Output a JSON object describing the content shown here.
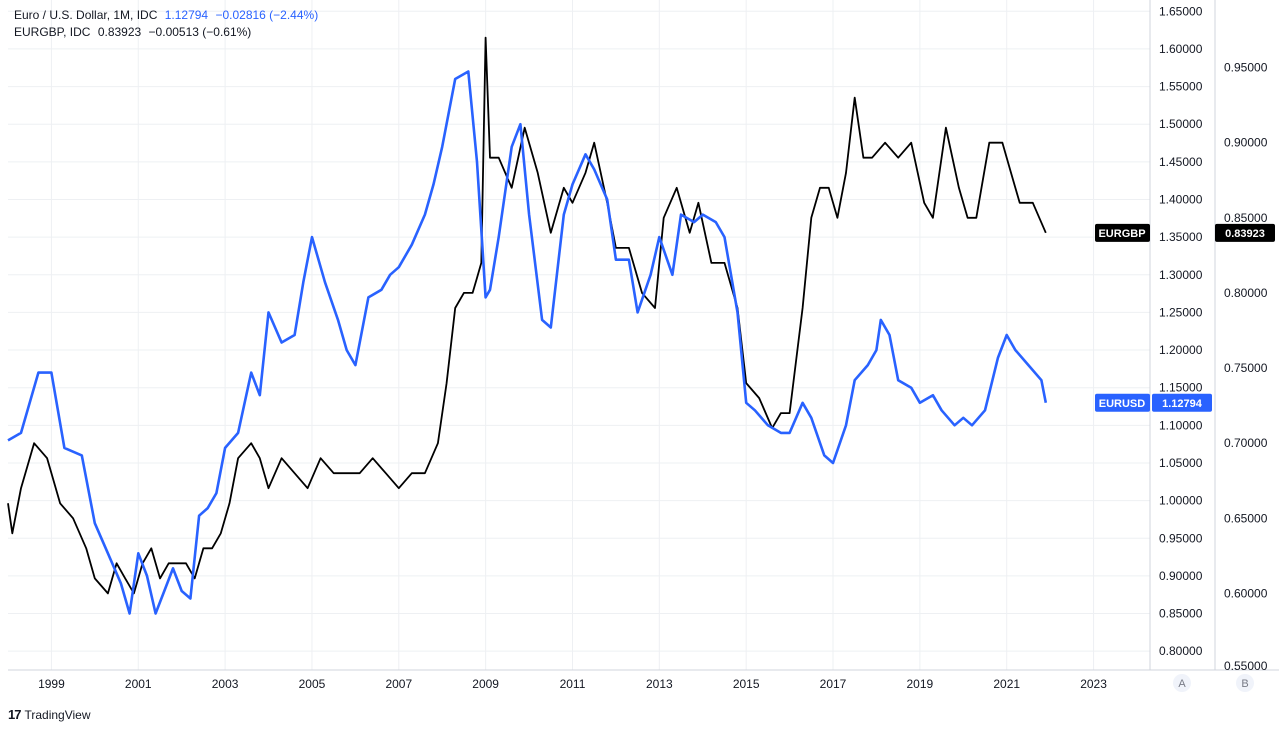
{
  "legend": {
    "eurusd": {
      "name": "Euro / U.S. Dollar, 1M, IDC",
      "value": "1.12794",
      "change": "−0.02816 (−2.44%)"
    },
    "eurgbp": {
      "name": "EURGBP, IDC",
      "value": "0.83923",
      "change": "−0.00513 (−0.61%)"
    }
  },
  "footer": {
    "brand": "TradingView",
    "logo": "17"
  },
  "scale_buttons": [
    "A",
    "B"
  ],
  "colors": {
    "eurusd": "#2962ff",
    "eurgbp": "#000000",
    "grid": "#eef0f3"
  },
  "chart_data": {
    "type": "line",
    "x_ticks": [
      "1999",
      "2001",
      "2003",
      "2005",
      "2007",
      "2009",
      "2011",
      "2013",
      "2015",
      "2017",
      "2019",
      "2021",
      "2023"
    ],
    "xlim": [
      1998.0,
      2024.3
    ],
    "axis_a": {
      "label": "A",
      "ylim": [
        0.775,
        1.665
      ],
      "ticks": [
        "0.80000",
        "0.85000",
        "0.90000",
        "0.95000",
        "1.00000",
        "1.05000",
        "1.10000",
        "1.15000",
        "1.20000",
        "1.25000",
        "1.30000",
        "1.35000",
        "1.40000",
        "1.45000",
        "1.50000",
        "1.55000",
        "1.60000",
        "1.65000"
      ]
    },
    "axis_b": {
      "label": "B",
      "ylim": [
        0.549,
        0.995
      ],
      "ticks": [
        "0.55000",
        "0.60000",
        "0.65000",
        "0.70000",
        "0.75000",
        "0.80000",
        "0.85000",
        "0.90000",
        "0.95000"
      ]
    },
    "series": [
      {
        "name": "EURUSD",
        "axis": "A",
        "color": "#2962ff",
        "last_value": "1.12794",
        "x": [
          1998.0,
          1998.3,
          1998.7,
          1999.0,
          1999.3,
          1999.7,
          2000.0,
          2000.3,
          2000.6,
          2000.8,
          2001.0,
          2001.2,
          2001.4,
          2001.6,
          2001.8,
          2002.0,
          2002.2,
          2002.4,
          2002.6,
          2002.8,
          2003.0,
          2003.3,
          2003.6,
          2003.8,
          2004.0,
          2004.3,
          2004.6,
          2004.8,
          2005.0,
          2005.3,
          2005.6,
          2005.8,
          2006.0,
          2006.3,
          2006.6,
          2006.8,
          2007.0,
          2007.3,
          2007.6,
          2007.8,
          2008.0,
          2008.3,
          2008.6,
          2008.8,
          2009.0,
          2009.1,
          2009.3,
          2009.6,
          2009.8,
          2010.0,
          2010.3,
          2010.5,
          2010.8,
          2011.0,
          2011.3,
          2011.5,
          2011.8,
          2012.0,
          2012.3,
          2012.5,
          2012.8,
          2013.0,
          2013.3,
          2013.5,
          2013.8,
          2014.0,
          2014.3,
          2014.5,
          2014.8,
          2015.0,
          2015.2,
          2015.5,
          2015.8,
          2016.0,
          2016.3,
          2016.5,
          2016.8,
          2017.0,
          2017.3,
          2017.5,
          2017.8,
          2018.0,
          2018.1,
          2018.3,
          2018.5,
          2018.8,
          2019.0,
          2019.3,
          2019.5,
          2019.8,
          2020.0,
          2020.2,
          2020.5,
          2020.8,
          2021.0,
          2021.2,
          2021.5,
          2021.8,
          2021.9
        ],
        "y": [
          1.08,
          1.09,
          1.17,
          1.17,
          1.07,
          1.06,
          0.97,
          0.93,
          0.89,
          0.85,
          0.93,
          0.9,
          0.85,
          0.88,
          0.91,
          0.88,
          0.87,
          0.98,
          0.99,
          1.01,
          1.07,
          1.09,
          1.17,
          1.14,
          1.25,
          1.21,
          1.22,
          1.29,
          1.35,
          1.29,
          1.24,
          1.2,
          1.18,
          1.27,
          1.28,
          1.3,
          1.31,
          1.34,
          1.38,
          1.42,
          1.47,
          1.56,
          1.57,
          1.45,
          1.27,
          1.28,
          1.35,
          1.47,
          1.5,
          1.38,
          1.24,
          1.23,
          1.38,
          1.42,
          1.46,
          1.44,
          1.4,
          1.32,
          1.32,
          1.25,
          1.3,
          1.35,
          1.3,
          1.38,
          1.37,
          1.38,
          1.37,
          1.35,
          1.25,
          1.13,
          1.12,
          1.1,
          1.09,
          1.09,
          1.13,
          1.11,
          1.06,
          1.05,
          1.1,
          1.16,
          1.18,
          1.2,
          1.24,
          1.22,
          1.16,
          1.15,
          1.13,
          1.14,
          1.12,
          1.1,
          1.11,
          1.1,
          1.12,
          1.19,
          1.22,
          1.2,
          1.18,
          1.16,
          1.13
        ]
      },
      {
        "name": "EURGBP",
        "axis": "B",
        "color": "#000000",
        "last_value": "0.83923",
        "x": [
          1998.0,
          1998.1,
          1998.3,
          1998.6,
          1998.9,
          1999.2,
          1999.5,
          1999.8,
          2000.0,
          2000.3,
          2000.5,
          2000.7,
          2000.9,
          2001.1,
          2001.3,
          2001.5,
          2001.7,
          2001.9,
          2002.1,
          2002.3,
          2002.5,
          2002.7,
          2002.9,
          2003.1,
          2003.3,
          2003.6,
          2003.8,
          2004.0,
          2004.3,
          2004.6,
          2004.9,
          2005.2,
          2005.5,
          2005.8,
          2006.1,
          2006.4,
          2006.7,
          2007.0,
          2007.3,
          2007.6,
          2007.9,
          2008.1,
          2008.3,
          2008.5,
          2008.7,
          2008.8,
          2008.9,
          2009.0,
          2009.1,
          2009.3,
          2009.6,
          2009.9,
          2010.2,
          2010.5,
          2010.8,
          2011.0,
          2011.3,
          2011.5,
          2011.8,
          2012.0,
          2012.3,
          2012.6,
          2012.9,
          2013.1,
          2013.4,
          2013.7,
          2013.9,
          2014.2,
          2014.5,
          2014.8,
          2015.0,
          2015.3,
          2015.6,
          2015.8,
          2016.0,
          2016.3,
          2016.5,
          2016.7,
          2016.9,
          2017.1,
          2017.3,
          2017.5,
          2017.7,
          2017.9,
          2018.2,
          2018.5,
          2018.8,
          2019.1,
          2019.3,
          2019.6,
          2019.9,
          2020.1,
          2020.3,
          2020.6,
          2020.9,
          2021.1,
          2021.3,
          2021.6,
          2021.9
        ],
        "y": [
          0.66,
          0.64,
          0.67,
          0.7,
          0.69,
          0.66,
          0.65,
          0.63,
          0.61,
          0.6,
          0.62,
          0.61,
          0.6,
          0.62,
          0.63,
          0.61,
          0.62,
          0.62,
          0.62,
          0.61,
          0.63,
          0.63,
          0.64,
          0.66,
          0.69,
          0.7,
          0.69,
          0.67,
          0.69,
          0.68,
          0.67,
          0.69,
          0.68,
          0.68,
          0.68,
          0.69,
          0.68,
          0.67,
          0.68,
          0.68,
          0.7,
          0.74,
          0.79,
          0.8,
          0.8,
          0.81,
          0.82,
          0.97,
          0.89,
          0.89,
          0.87,
          0.91,
          0.88,
          0.84,
          0.87,
          0.86,
          0.88,
          0.9,
          0.86,
          0.83,
          0.83,
          0.8,
          0.79,
          0.85,
          0.87,
          0.84,
          0.86,
          0.82,
          0.82,
          0.79,
          0.74,
          0.73,
          0.71,
          0.72,
          0.72,
          0.79,
          0.85,
          0.87,
          0.87,
          0.85,
          0.88,
          0.93,
          0.89,
          0.89,
          0.9,
          0.89,
          0.9,
          0.86,
          0.85,
          0.91,
          0.87,
          0.85,
          0.85,
          0.9,
          0.9,
          0.88,
          0.86,
          0.86,
          0.84
        ]
      }
    ]
  }
}
